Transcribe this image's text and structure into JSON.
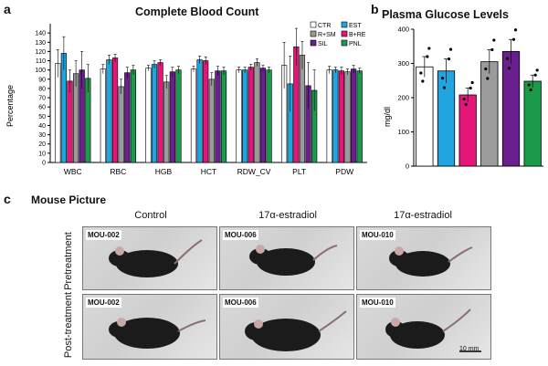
{
  "panels": {
    "a_letter": "a",
    "b_letter": "b",
    "c_letter": "c"
  },
  "colors": {
    "CTR": "#ffffff",
    "EST": "#1fa6e0",
    "B+RE": "#e5157a",
    "R+SM": "#9b9b9b",
    "SIL": "#6a1f8f",
    "PNL": "#1a9a4a"
  },
  "chart_data": [
    {
      "type": "bar",
      "title": "Complete Blood Count",
      "xlabel": "",
      "ylabel": "Percentage",
      "ylim": [
        0,
        150
      ],
      "yticks": [
        0,
        10,
        20,
        30,
        40,
        50,
        60,
        70,
        80,
        90,
        100,
        110,
        120,
        130,
        140
      ],
      "categories": [
        "WBC",
        "RBC",
        "HGB",
        "HCT",
        "RDW_CV",
        "PLT",
        "PDW"
      ],
      "legend": [
        "CTR",
        "EST",
        "R+SM",
        "B+RE",
        "SIL",
        "PNL"
      ],
      "legend_position": "top-right",
      "series": [
        {
          "name": "CTR",
          "values": [
            107,
            101,
            102,
            101,
            100,
            105,
            100
          ],
          "errors": [
            15,
            5,
            3,
            3,
            3,
            25,
            4
          ]
        },
        {
          "name": "EST",
          "values": [
            118,
            111,
            106,
            111,
            100,
            85,
            100
          ],
          "errors": [
            18,
            5,
            4,
            4,
            3,
            30,
            3
          ]
        },
        {
          "name": "B+RE",
          "values": [
            88,
            113,
            108,
            110,
            103,
            125,
            99
          ],
          "errors": [
            12,
            4,
            3,
            4,
            3,
            20,
            4
          ]
        },
        {
          "name": "R+SM",
          "values": [
            96,
            82,
            87,
            90,
            108,
            116,
            98
          ],
          "errors": [
            14,
            8,
            7,
            7,
            4,
            15,
            3
          ]
        },
        {
          "name": "SIL",
          "values": [
            100,
            97,
            98,
            99,
            102,
            83,
            101
          ],
          "errors": [
            20,
            6,
            5,
            5,
            3,
            25,
            4
          ]
        },
        {
          "name": "PNL",
          "values": [
            91,
            100,
            100,
            99,
            100,
            78,
            99
          ],
          "errors": [
            15,
            5,
            4,
            4,
            3,
            22,
            3
          ]
        }
      ]
    },
    {
      "type": "bar",
      "title": "Plasma Glucose Levels",
      "xlabel": "",
      "ylabel": "mg/dl",
      "ylim": [
        0,
        400
      ],
      "yticks": [
        0,
        100,
        200,
        300,
        400
      ],
      "categories": [
        "CTR",
        "EST",
        "B+RE",
        "R+SM",
        "SIL",
        "PNL"
      ],
      "values": [
        290,
        278,
        208,
        305,
        335,
        248
      ],
      "errors": [
        30,
        35,
        20,
        35,
        35,
        18
      ]
    }
  ],
  "mouse_picture": {
    "title": "Mouse Picture",
    "columns": [
      "Control",
      "17α-estradiol",
      "17α-estradiol"
    ],
    "rows": [
      "Pretreatment",
      "Post-treatment"
    ],
    "photos": [
      {
        "label": "MOU-002"
      },
      {
        "label": "MOU-006"
      },
      {
        "label": "MOU-010"
      },
      {
        "label": "MOU-002"
      },
      {
        "label": "MOU-006"
      },
      {
        "label": "MOU-010"
      }
    ],
    "scale_bar": "10 mm"
  }
}
